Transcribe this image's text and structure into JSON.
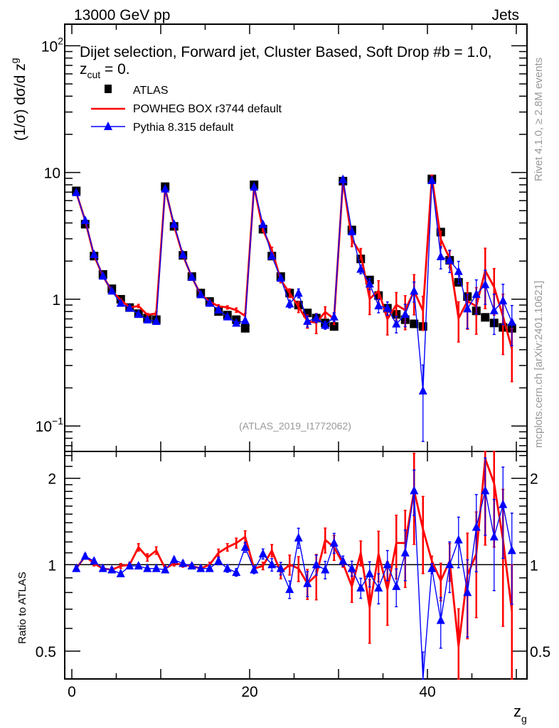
{
  "header": {
    "energy_label": "13000 GeV pp",
    "process_label": "Jets",
    "title": "Dijet selection, Forward jet, Cluster Based, Soft Drop #b = 1.0, z",
    "title_sub": "cut",
    "title_tail": " = 0.",
    "side_label_rivet": "Rivet 4.1.0, ≥ 2.8M events",
    "side_label_mcplots": "mcplots.cern.ch [arXiv:2401.10621]",
    "analysis_id": "(ATLAS_2019_I1772062)"
  },
  "chart_data": {
    "type": "line",
    "xlabel": "z",
    "xlabel_sub": "g",
    "ylabel": "(1/σ) dσ/d z",
    "ylabel_sub": "g",
    "ratio_ylabel": "Ratio to ATLAS",
    "xlim": [
      -0.8,
      51.2
    ],
    "ylim": [
      0.063,
      148
    ],
    "yscale": "log",
    "ratio_ylim": [
      0.4,
      2.48
    ],
    "ratio_yscale": "log",
    "x_tick_labels": [
      "0",
      "20",
      "40"
    ],
    "x_ticks": [
      0,
      20,
      40
    ],
    "y_tick_labels": [
      {
        "value": 0.1,
        "base": "10",
        "exp": "−1"
      },
      {
        "value": 1,
        "base": "1",
        "exp": ""
      },
      {
        "value": 10,
        "base": "10",
        "exp": ""
      },
      {
        "value": 100,
        "base": "10",
        "exp": "2"
      }
    ],
    "ratio_tick_labels": [
      {
        "value": 0.5,
        "label": "0.5"
      },
      {
        "value": 1,
        "label": "1"
      },
      {
        "value": 2,
        "label": "2"
      }
    ],
    "legend_position": "top-left",
    "x": [
      0.5,
      1.5,
      2.5,
      3.5,
      4.5,
      5.5,
      6.5,
      7.5,
      8.5,
      9.5,
      10.5,
      11.5,
      12.5,
      13.5,
      14.5,
      15.5,
      16.5,
      17.5,
      18.5,
      19.5,
      20.5,
      21.5,
      22.5,
      23.5,
      24.5,
      25.5,
      26.5,
      27.5,
      28.5,
      29.5,
      30.5,
      31.5,
      32.5,
      33.5,
      34.5,
      35.5,
      36.5,
      37.5,
      38.5,
      39.5,
      40.5,
      41.5,
      42.5,
      43.5,
      44.5,
      45.5,
      46.5,
      47.5,
      48.5,
      49.5
    ],
    "series": [
      {
        "name": "ATLAS",
        "color": "#000000",
        "marker": "square",
        "values": [
          7.16,
          3.91,
          2.19,
          1.57,
          1.21,
          1.0,
          0.86,
          0.77,
          0.71,
          0.69,
          7.73,
          3.76,
          2.22,
          1.51,
          1.12,
          0.96,
          0.8,
          0.75,
          0.69,
          0.59,
          8.0,
          3.57,
          2.19,
          1.51,
          1.12,
          0.9,
          0.78,
          0.71,
          0.65,
          0.61,
          8.55,
          3.52,
          2.08,
          1.42,
          1.07,
          0.85,
          0.76,
          0.69,
          0.64,
          0.61,
          8.9,
          3.39,
          2.03,
          1.36,
          1.05,
          0.81,
          0.72,
          0.65,
          0.6,
          0.59
        ]
      },
      {
        "name": "POWHEG BOX r3744 default",
        "color": "#ff0000",
        "marker": "none",
        "ratio": [
          0.97,
          1.07,
          1.01,
          0.97,
          0.96,
          0.99,
          1.0,
          1.15,
          1.06,
          1.12,
          0.97,
          1.01,
          1.0,
          0.99,
          0.97,
          1.0,
          1.1,
          1.15,
          1.19,
          1.25,
          0.97,
          0.99,
          1.12,
          0.94,
          1.0,
          0.97,
          0.86,
          0.92,
          1.22,
          1.15,
          1.01,
          0.84,
          1.1,
          0.71,
          1.09,
          0.82,
          1.19,
          1.19,
          1.81,
          1.33,
          1.03,
          0.88,
          1.03,
          0.52,
          0.92,
          1.09,
          2.34,
          1.92,
          1.22,
          0.69
        ],
        "rel_err": [
          0.02,
          0.02,
          0.02,
          0.02,
          0.02,
          0.02,
          0.02,
          0.03,
          0.03,
          0.03,
          0.02,
          0.02,
          0.02,
          0.02,
          0.02,
          0.02,
          0.03,
          0.03,
          0.04,
          0.05,
          0.02,
          0.03,
          0.05,
          0.05,
          0.08,
          0.1,
          0.12,
          0.18,
          0.1,
          0.1,
          0.03,
          0.12,
          0.1,
          0.25,
          0.2,
          0.25,
          0.25,
          0.3,
          0.35,
          0.3,
          0.04,
          0.15,
          0.15,
          0.35,
          0.4,
          0.4,
          0.5,
          0.4,
          0.5,
          0.45
        ]
      },
      {
        "name": "Pythia 8.315 default",
        "color": "#0000ff",
        "marker": "triangle",
        "ratio": [
          0.97,
          1.07,
          1.03,
          0.97,
          0.96,
          0.93,
          0.99,
          0.99,
          0.97,
          0.97,
          0.96,
          1.04,
          1.01,
          0.99,
          0.97,
          0.97,
          1.03,
          0.97,
          0.94,
          1.15,
          0.96,
          1.09,
          1.0,
          0.97,
          0.82,
          1.24,
          0.86,
          1.0,
          0.96,
          1.19,
          1.03,
          0.97,
          0.83,
          0.93,
          0.83,
          1.0,
          0.84,
          1.1,
          1.81,
          0.31,
          0.97,
          0.64,
          1.0,
          1.22,
          0.8,
          1.35,
          1.81,
          1.25,
          1.62,
          1.12
        ],
        "rel_err": [
          0.02,
          0.02,
          0.02,
          0.02,
          0.02,
          0.02,
          0.02,
          0.02,
          0.02,
          0.02,
          0.02,
          0.02,
          0.02,
          0.02,
          0.02,
          0.02,
          0.03,
          0.03,
          0.03,
          0.04,
          0.03,
          0.04,
          0.05,
          0.05,
          0.07,
          0.08,
          0.1,
          0.08,
          0.07,
          0.08,
          0.04,
          0.06,
          0.08,
          0.1,
          0.12,
          0.12,
          0.15,
          0.2,
          0.18,
          0.6,
          0.04,
          0.2,
          0.2,
          0.2,
          0.3,
          0.3,
          0.3,
          0.35,
          0.35,
          0.35
        ]
      }
    ]
  }
}
